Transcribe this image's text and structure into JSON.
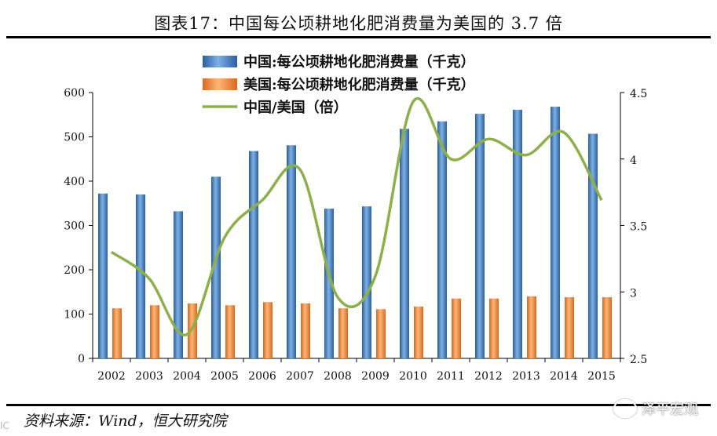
{
  "page": {
    "title": "图表17：中国每公顷耕地化肥消费量为美国的 3.7 倍",
    "source": "资料来源：Wind，恒大研究院",
    "watermark": "泽平宏观",
    "side_mark": "IC"
  },
  "chart_data": {
    "type": "bar",
    "categories": [
      "2002",
      "2003",
      "2004",
      "2005",
      "2006",
      "2007",
      "2008",
      "2009",
      "2010",
      "2011",
      "2012",
      "2013",
      "2014",
      "2015"
    ],
    "series": [
      {
        "name": "中国:每公顷耕地化肥消费量（千克）",
        "type": "bar",
        "axis": "left",
        "color": "#3e78b8",
        "values": [
          372,
          370,
          332,
          410,
          468,
          481,
          338,
          343,
          518,
          535,
          552,
          561,
          568,
          507
        ]
      },
      {
        "name": "美国:每公顷耕地化肥消费量（千克）",
        "type": "bar",
        "axis": "left",
        "color": "#e87d2c",
        "values": [
          113,
          120,
          124,
          120,
          127,
          124,
          113,
          111,
          117,
          135,
          135,
          140,
          138,
          138
        ]
      },
      {
        "name": "中国/美国（倍）",
        "type": "line",
        "axis": "right",
        "color": "#8db04a",
        "values": [
          3.3,
          3.1,
          2.68,
          3.41,
          3.69,
          3.92,
          2.96,
          3.12,
          4.43,
          4.0,
          4.15,
          4.03,
          4.2,
          3.69
        ]
      }
    ],
    "y_left": {
      "min": 0,
      "max": 600,
      "ticks": [
        "0",
        "100",
        "200",
        "300",
        "400",
        "500",
        "600"
      ]
    },
    "y_right": {
      "min": 2.5,
      "max": 4.5,
      "ticks": [
        "2.5",
        "3",
        "3.5",
        "4",
        "4.5"
      ]
    },
    "legend_position": "top-center",
    "grid": false
  }
}
